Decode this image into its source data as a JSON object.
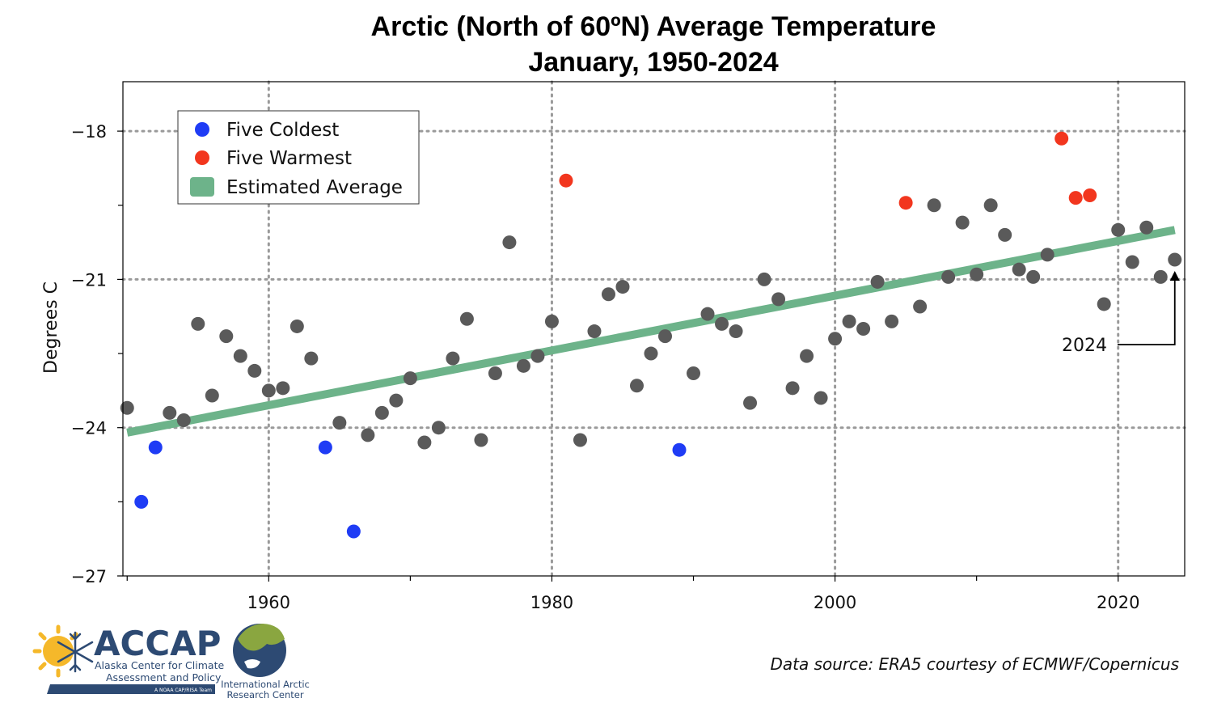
{
  "chart_data": {
    "type": "scatter",
    "title": "Arctic (North of 60ºN) Average Temperature",
    "subtitle": "January, 1950-2024",
    "ylabel": "Degrees C",
    "xlabel": "",
    "xlim": [
      1949.7,
      2024.7
    ],
    "ylim": [
      -27,
      -17
    ],
    "x_ticks": [
      1960,
      1980,
      2000,
      2020
    ],
    "x_minor_ticks": [
      1950,
      1970,
      1990,
      2010
    ],
    "y_ticks": [
      -18,
      -21,
      -24,
      -27
    ],
    "y_minor_ticks": [
      -19.5,
      -22.5,
      -25.5
    ],
    "grid": "dotted, at major ticks",
    "legend_position": "top-left",
    "series": [
      {
        "name": "Five Coldest",
        "color": "#1f3cf5",
        "points": [
          [
            1951,
            -25.5
          ],
          [
            1952,
            -24.4
          ],
          [
            1964,
            -24.4
          ],
          [
            1966,
            -26.1
          ],
          [
            1989,
            -24.45
          ]
        ]
      },
      {
        "name": "Five Warmest",
        "color": "#f2361e",
        "points": [
          [
            1981,
            -19.0
          ],
          [
            2005,
            -19.45
          ],
          [
            2016,
            -18.15
          ],
          [
            2017,
            -19.35
          ],
          [
            2018,
            -19.3
          ]
        ]
      },
      {
        "name": "",
        "color": "#5a5a5a",
        "points": [
          [
            1950,
            -23.6
          ],
          [
            1953,
            -23.7
          ],
          [
            1954,
            -23.85
          ],
          [
            1955,
            -21.9
          ],
          [
            1956,
            -23.35
          ],
          [
            1957,
            -22.15
          ],
          [
            1958,
            -22.55
          ],
          [
            1959,
            -22.85
          ],
          [
            1960,
            -23.25
          ],
          [
            1961,
            -23.2
          ],
          [
            1962,
            -21.95
          ],
          [
            1963,
            -22.6
          ],
          [
            1965,
            -23.9
          ],
          [
            1967,
            -24.15
          ],
          [
            1968,
            -23.7
          ],
          [
            1969,
            -23.45
          ],
          [
            1970,
            -23.0
          ],
          [
            1971,
            -24.3
          ],
          [
            1972,
            -24.0
          ],
          [
            1973,
            -22.6
          ],
          [
            1974,
            -21.8
          ],
          [
            1975,
            -24.25
          ],
          [
            1976,
            -22.9
          ],
          [
            1977,
            -20.25
          ],
          [
            1978,
            -22.75
          ],
          [
            1979,
            -22.55
          ],
          [
            1980,
            -21.85
          ],
          [
            1982,
            -24.25
          ],
          [
            1983,
            -22.05
          ],
          [
            1984,
            -21.3
          ],
          [
            1985,
            -21.15
          ],
          [
            1986,
            -23.15
          ],
          [
            1987,
            -22.5
          ],
          [
            1988,
            -22.15
          ],
          [
            1990,
            -22.9
          ],
          [
            1991,
            -21.7
          ],
          [
            1992,
            -21.9
          ],
          [
            1993,
            -22.05
          ],
          [
            1994,
            -23.5
          ],
          [
            1995,
            -21.0
          ],
          [
            1996,
            -21.4
          ],
          [
            1997,
            -23.2
          ],
          [
            1998,
            -22.55
          ],
          [
            1999,
            -23.4
          ],
          [
            2000,
            -22.2
          ],
          [
            2001,
            -21.85
          ],
          [
            2002,
            -22.0
          ],
          [
            2003,
            -21.05
          ],
          [
            2004,
            -21.85
          ],
          [
            2006,
            -21.55
          ],
          [
            2007,
            -19.5
          ],
          [
            2008,
            -20.95
          ],
          [
            2009,
            -19.85
          ],
          [
            2010,
            -20.9
          ],
          [
            2011,
            -19.5
          ],
          [
            2012,
            -20.1
          ],
          [
            2013,
            -20.8
          ],
          [
            2014,
            -20.95
          ],
          [
            2015,
            -20.5
          ],
          [
            2019,
            -21.5
          ],
          [
            2020,
            -20.0
          ],
          [
            2021,
            -20.65
          ],
          [
            2022,
            -19.95
          ],
          [
            2023,
            -20.95
          ],
          [
            2024,
            -20.6
          ]
        ]
      },
      {
        "name": "Estimated Average",
        "type": "line",
        "color": "#6db38a",
        "points": [
          [
            1950,
            -24.1
          ],
          [
            2024,
            -20.0
          ]
        ]
      }
    ],
    "annotations": [
      {
        "text": "2024",
        "target": [
          2024,
          -20.6
        ]
      }
    ]
  },
  "footer": {
    "source": "Data source: ERA5 courtesy of ECMWF/Copernicus"
  },
  "logos": {
    "accap": {
      "name": "ACCAP",
      "line1": "Alaska Center for Climate",
      "line2": "Assessment and Policy",
      "tagline": "A NOAA CAP/RISA Team"
    },
    "iarc": {
      "line1": "International Arctic",
      "line2": "Research Center"
    }
  },
  "colors": {
    "navy": "#2d4a73",
    "sun": "#f5b82a",
    "snowflake": "#6b8fc0",
    "gridline": "#9a9a9a"
  }
}
